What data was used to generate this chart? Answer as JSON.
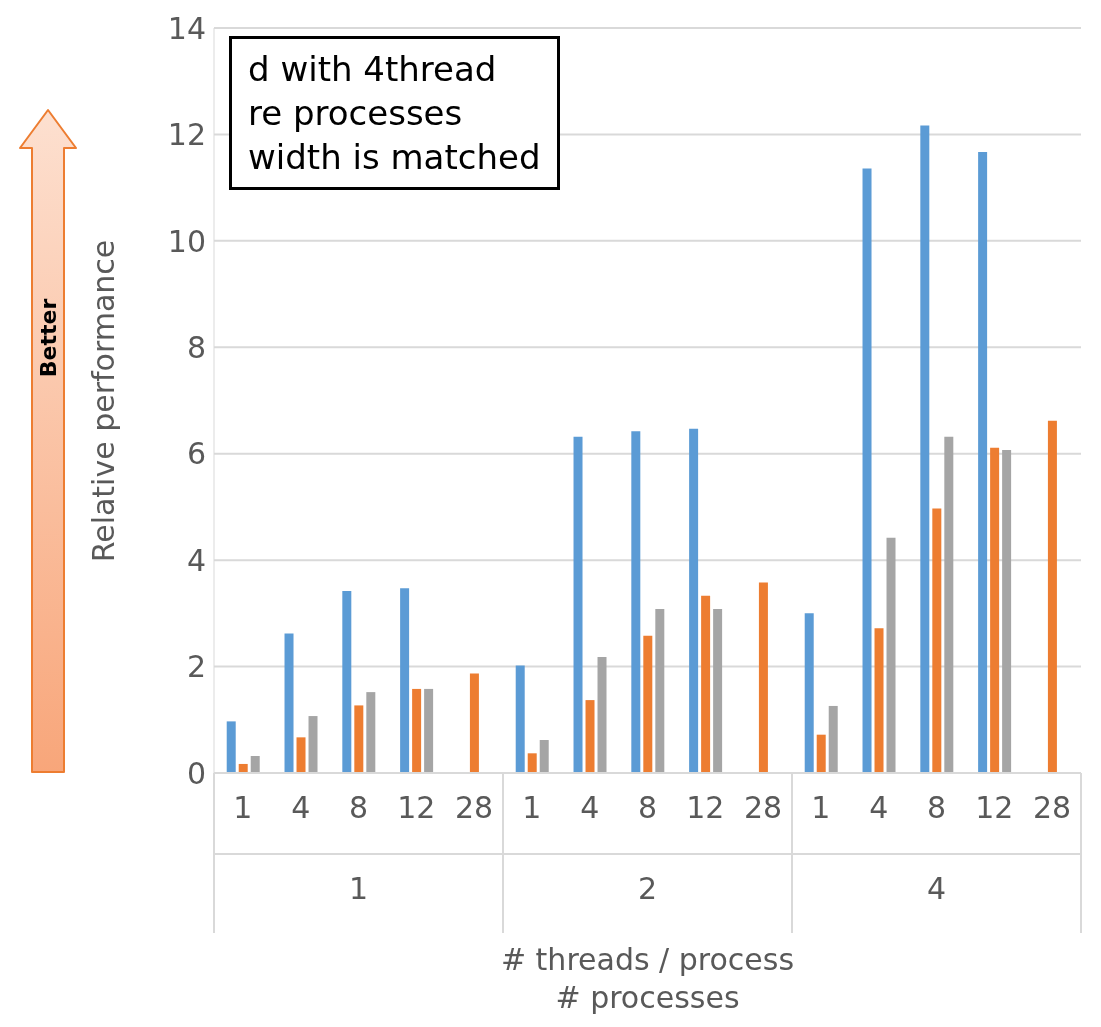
{
  "chart_data": {
    "type": "bar",
    "ylabel": "Relative performance",
    "xlabel": "# threads / process\n# processes",
    "categories": [
      "1",
      "4",
      "8",
      "12",
      "28",
      "1",
      "4",
      "8",
      "12",
      "28",
      "1",
      "4",
      "8",
      "12",
      "28"
    ],
    "series": [
      {
        "color": "#5b9bd5",
        "values": [
          0.97,
          2.62,
          3.42,
          3.47,
          null,
          2.02,
          6.32,
          6.42,
          6.47,
          null,
          3.0,
          11.36,
          12.17,
          11.67,
          null
        ]
      },
      {
        "color": "#ed7d31",
        "values": [
          0.17,
          0.67,
          1.27,
          1.58,
          1.87,
          0.37,
          1.37,
          2.58,
          3.33,
          3.58,
          0.72,
          2.72,
          4.97,
          6.11,
          6.62
        ]
      },
      {
        "color": "#a5a5a5",
        "values": [
          0.32,
          1.07,
          1.52,
          1.58,
          null,
          0.62,
          2.18,
          3.08,
          3.08,
          null,
          1.26,
          4.42,
          6.32,
          6.07,
          null
        ]
      }
    ],
    "ylim": [
      0,
      14
    ],
    "yticks": [
      0,
      2,
      4,
      6,
      8,
      10,
      12,
      14
    ],
    "grid": "y",
    "annotations": [
      "1",
      "2",
      "4",
      "Better",
      "d with 4thread",
      "re processes",
      "width is matched"
    ]
  }
}
